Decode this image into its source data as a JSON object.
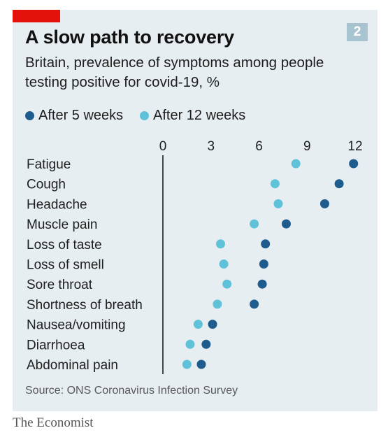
{
  "header": {
    "title": "A slow path to recovery",
    "badge": "2",
    "subtitle_line1": "Britain, prevalence of symptoms among people",
    "subtitle_line2": "testing positive for covid-19, %"
  },
  "legend": {
    "after5": "After 5 weeks",
    "after12": "After 12 weeks"
  },
  "colors": {
    "after5": "#1e5c8e",
    "after12": "#5fc2d9",
    "panel": "#e7eef2",
    "accent_red": "#e3120b"
  },
  "chart_data": {
    "type": "scatter",
    "title": "A slow path to recovery",
    "subtitle": "Britain, prevalence of symptoms among people testing positive for covid-19, %",
    "categories": [
      "Fatigue",
      "Cough",
      "Headache",
      "Muscle pain",
      "Loss of taste",
      "Loss of smell",
      "Sore throat",
      "Shortness of breath",
      "Nausea/vomiting",
      "Diarrhoea",
      "Abdominal pain"
    ],
    "series": [
      {
        "name": "After 5 weeks",
        "values": [
          11.9,
          11.0,
          10.1,
          7.7,
          6.4,
          6.3,
          6.2,
          5.7,
          3.1,
          2.7,
          2.4
        ]
      },
      {
        "name": "After 12 weeks",
        "values": [
          8.3,
          7.0,
          7.2,
          5.7,
          3.6,
          3.8,
          4.0,
          3.4,
          2.2,
          1.7,
          1.5
        ]
      }
    ],
    "xticks": [
      0,
      3,
      6,
      9,
      12
    ],
    "xlim": [
      0,
      12
    ],
    "axis_position": "top",
    "legend_position": "top-left",
    "grid": false
  },
  "footer": {
    "source": "Source: ONS Coronavirus Infection Survey",
    "brand": "The Economist"
  }
}
